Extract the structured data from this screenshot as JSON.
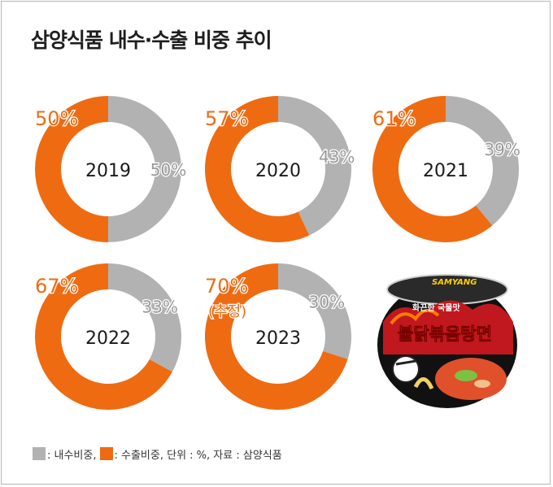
{
  "title": "삼양식품 내수·수출 비중 추이",
  "colors": {
    "export": "#ee6b12",
    "domestic": "#b2b2b2"
  },
  "chart_data": {
    "type": "donut",
    "title": "삼양식품 내수·수출 비중 추이",
    "unit": "%",
    "series": [
      {
        "name": "내수비중",
        "color": "#b2b2b2"
      },
      {
        "name": "수출비중",
        "color": "#ee6b12"
      }
    ],
    "charts": [
      {
        "year": "2019",
        "export": 50,
        "domestic": 50,
        "export_label": "50%",
        "domestic_label": "50%",
        "note": ""
      },
      {
        "year": "2020",
        "export": 57,
        "domestic": 43,
        "export_label": "57%",
        "domestic_label": "43%",
        "note": ""
      },
      {
        "year": "2021",
        "export": 61,
        "domestic": 39,
        "export_label": "61%",
        "domestic_label": "39%",
        "note": ""
      },
      {
        "year": "2022",
        "export": 67,
        "domestic": 33,
        "export_label": "67%",
        "domestic_label": "33%",
        "note": ""
      },
      {
        "year": "2023",
        "export": 70,
        "domestic": 30,
        "export_label": "70%",
        "domestic_label": "30%",
        "note": "(추정)"
      }
    ]
  },
  "legend": {
    "domestic_text": ": 내수비중,",
    "export_text": ": 수출비중, 단위 : %, 자료 : 삼양식품"
  },
  "product": {
    "brand": "SAMYANG",
    "name": "불닭볶음탕면",
    "tagline": "화끈한 국물맛"
  }
}
